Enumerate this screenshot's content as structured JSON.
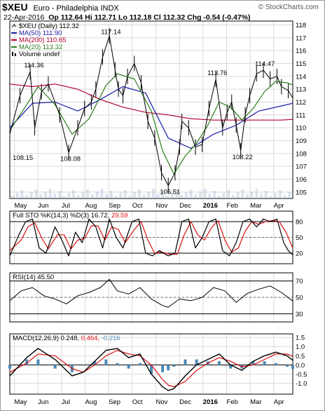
{
  "header": {
    "symbol": "$XEU",
    "name": "Euro - Philadelphia INDX",
    "brand": "© StockCharts.com",
    "date": "22-Apr-2016",
    "quote": "Op 112.64 Hi 112.71 Lo 112.18 Cl 112.32 Chg -0.54 (-0.47%)"
  },
  "colors": {
    "price": "#000000",
    "ma50": "#1a1aa6",
    "ma200": "#b3002d",
    "ma20": "#2e7d1e",
    "sto_k": "#000000",
    "sto_d": "#dd1111",
    "rsi": "#000000",
    "macd": "#000000",
    "signal": "#dd1111",
    "hist": "#4a8ab8",
    "grid": "#d9d9d9",
    "volume": "#9ab0d0"
  },
  "chart_data": [
    {
      "type": "line",
      "title": "$XEU (Daily) 112.32",
      "legend": [
        {
          "name": "$XEU (Daily)",
          "value": "112.32",
          "symbol": "line-icon"
        },
        {
          "name": "MA(50)",
          "value": "111.90",
          "color": "#1a1aa6"
        },
        {
          "name": "MA(200)",
          "value": "110.65",
          "color": "#b3002d"
        },
        {
          "name": "MA(20)",
          "value": "113.32",
          "color": "#2e7d1e"
        },
        {
          "name": "Volume",
          "value": "undef",
          "symbol": "volume-icon"
        }
      ],
      "legend_position": "top-left",
      "ylim": [
        104.5,
        118.3
      ],
      "yticks": [
        105,
        106,
        107,
        108,
        109,
        110,
        111,
        112,
        113,
        114,
        115,
        116,
        117,
        118
      ],
      "x_labels": [
        "May",
        "Jun",
        "Jul",
        "Aug",
        "Sep",
        "Oct",
        "Nov",
        "Dec",
        "2016",
        "Feb",
        "Mar",
        "Apr"
      ],
      "series": [
        {
          "name": "$XEU (Daily)",
          "x": [
            0,
            9,
            18,
            22,
            28,
            34,
            44,
            52,
            60,
            66,
            72,
            76,
            82,
            88,
            93,
            96,
            100,
            104,
            110,
            116,
            122,
            128,
            134,
            140,
            146,
            150,
            152,
            158,
            164,
            170,
            176,
            182,
            188,
            192,
            196,
            200,
            204,
            208,
            212,
            218,
            224,
            230,
            236,
            240,
            246,
            250
          ],
          "values": [
            109.5,
            112.5,
            114.36,
            110.0,
            112.8,
            113.4,
            111.0,
            108.08,
            110.0,
            111.5,
            112.0,
            113.0,
            115.5,
            117.14,
            114.5,
            113.0,
            112.5,
            114.0,
            115.0,
            113.5,
            110.5,
            109.2,
            106.5,
            105.51,
            106.5,
            108.5,
            110.5,
            110.0,
            108.5,
            108.7,
            111.5,
            113.76,
            110.0,
            111.2,
            112.0,
            110.2,
            108.22,
            111.0,
            112.5,
            114.2,
            114.47,
            113.8,
            114.0,
            113.2,
            112.9,
            112.32
          ]
        },
        {
          "name": "MA(50)",
          "x": [
            0,
            20,
            40,
            60,
            80,
            100,
            120,
            140,
            160,
            180,
            200,
            220,
            240,
            250
          ],
          "values": [
            110.0,
            111.9,
            112.0,
            111.3,
            112.2,
            113.2,
            112.7,
            109.2,
            108.4,
            109.5,
            110.2,
            111.3,
            111.7,
            111.9
          ]
        },
        {
          "name": "MA(200)",
          "x": [
            0,
            20,
            40,
            60,
            80,
            100,
            120,
            140,
            160,
            180,
            200,
            220,
            240,
            250
          ],
          "values": [
            113.4,
            113.2,
            113.4,
            113.0,
            112.2,
            111.6,
            111.2,
            111.0,
            110.7,
            110.6,
            110.6,
            110.6,
            110.6,
            110.65
          ]
        },
        {
          "name": "MA(20)",
          "x": [
            0,
            15,
            25,
            40,
            55,
            70,
            85,
            95,
            110,
            125,
            135,
            145,
            155,
            165,
            175,
            185,
            195,
            205,
            215,
            225,
            235,
            245,
            250
          ],
          "values": [
            109.8,
            111.8,
            113.2,
            111.8,
            109.5,
            110.7,
            113.3,
            114.2,
            113.8,
            111.3,
            108.2,
            106.4,
            107.8,
            108.8,
            110.2,
            112.0,
            111.6,
            110.6,
            111.5,
            112.8,
            113.6,
            113.5,
            113.32
          ]
        }
      ],
      "annotations": [
        "108.15",
        "114.36",
        "108.08",
        "117.14",
        "105.51",
        "113.76",
        "108.22",
        "114.47"
      ]
    },
    {
      "type": "line",
      "title": "Full STO %K(14,3) %D(3) 16.72, 29.59",
      "label_parts": {
        "name": "Full STO %K(14,3) %D(3)",
        "k": "16.72",
        "d": "29.59"
      },
      "ylim": [
        0,
        100
      ],
      "yticks": [
        20,
        50,
        80
      ],
      "series": [
        {
          "name": "%K",
          "x": [
            0,
            8,
            14,
            20,
            26,
            32,
            40,
            46,
            52,
            58,
            64,
            70,
            76,
            82,
            88,
            94,
            100,
            108,
            114,
            120,
            126,
            132,
            140,
            146,
            152,
            158,
            164,
            170,
            176,
            182,
            188,
            194,
            200,
            206,
            212,
            218,
            224,
            230,
            236,
            242,
            246,
            250
          ],
          "values": [
            15,
            55,
            80,
            85,
            30,
            20,
            70,
            45,
            15,
            60,
            40,
            85,
            70,
            30,
            85,
            50,
            30,
            80,
            85,
            20,
            15,
            25,
            15,
            20,
            80,
            85,
            30,
            50,
            80,
            85,
            25,
            15,
            40,
            80,
            85,
            70,
            85,
            80,
            85,
            40,
            25,
            16.72
          ]
        },
        {
          "name": "%D",
          "x": [
            0,
            10,
            16,
            22,
            28,
            34,
            42,
            48,
            54,
            60,
            66,
            72,
            78,
            84,
            90,
            96,
            102,
            110,
            116,
            122,
            128,
            134,
            142,
            148,
            154,
            160,
            166,
            172,
            178,
            184,
            190,
            196,
            202,
            208,
            214,
            220,
            226,
            232,
            238,
            244,
            250
          ],
          "values": [
            25,
            45,
            70,
            78,
            50,
            28,
            55,
            55,
            28,
            45,
            48,
            72,
            72,
            45,
            70,
            65,
            40,
            65,
            80,
            45,
            20,
            22,
            18,
            18,
            55,
            80,
            55,
            45,
            68,
            82,
            45,
            22,
            30,
            62,
            80,
            75,
            80,
            82,
            80,
            60,
            29.59
          ]
        }
      ]
    },
    {
      "type": "line",
      "title": "RSI(14) 45.50",
      "label_parts": {
        "name": "RSI(14)",
        "value": "45.50"
      },
      "ylim": [
        20,
        80
      ],
      "yticks": [
        30,
        50,
        70
      ],
      "series": [
        {
          "name": "RSI(14)",
          "x": [
            0,
            10,
            20,
            30,
            40,
            50,
            60,
            70,
            80,
            88,
            95,
            105,
            115,
            125,
            135,
            140,
            150,
            160,
            170,
            180,
            190,
            200,
            210,
            220,
            230,
            240,
            250
          ],
          "values": [
            46,
            58,
            62,
            52,
            48,
            42,
            52,
            56,
            62,
            72,
            58,
            54,
            62,
            48,
            40,
            38,
            48,
            46,
            50,
            62,
            58,
            44,
            55,
            60,
            64,
            56,
            45.5
          ]
        }
      ]
    },
    {
      "type": "line",
      "title": "MACD(12,26,9) 0.248, 0.464, -0.216",
      "label_parts": {
        "name": "MACD(12,26,9)",
        "macd": "0.248",
        "signal": "0.464",
        "hist": "-0.216"
      },
      "ylim": [
        -1.6,
        1.7
      ],
      "yticks": [
        -1.0,
        -0.5,
        0.0,
        0.5,
        1.0,
        1.5
      ],
      "series": [
        {
          "name": "MACD",
          "x": [
            0,
            15,
            25,
            40,
            55,
            65,
            75,
            85,
            95,
            105,
            115,
            125,
            135,
            140,
            145,
            155,
            165,
            175,
            185,
            195,
            205,
            215,
            225,
            235,
            245,
            250
          ],
          "values": [
            -0.6,
            0.4,
            0.9,
            0.3,
            -0.6,
            -0.4,
            0.2,
            0.8,
            0.9,
            0.4,
            0.6,
            -0.5,
            -1.2,
            -1.4,
            -1.3,
            -0.6,
            0.0,
            0.3,
            0.6,
            0.0,
            -0.3,
            0.2,
            0.5,
            0.7,
            0.5,
            0.248
          ]
        },
        {
          "name": "Signal",
          "x": [
            0,
            15,
            25,
            40,
            55,
            65,
            75,
            85,
            95,
            105,
            115,
            125,
            135,
            140,
            145,
            155,
            165,
            175,
            185,
            195,
            205,
            215,
            225,
            235,
            245,
            250
          ],
          "values": [
            -0.4,
            0.1,
            0.6,
            0.5,
            -0.2,
            -0.4,
            0.0,
            0.5,
            0.8,
            0.6,
            0.5,
            0.0,
            -0.8,
            -1.1,
            -1.2,
            -0.9,
            -0.3,
            0.1,
            0.4,
            0.2,
            -0.1,
            0.0,
            0.3,
            0.6,
            0.6,
            0.464
          ]
        }
      ]
    }
  ]
}
